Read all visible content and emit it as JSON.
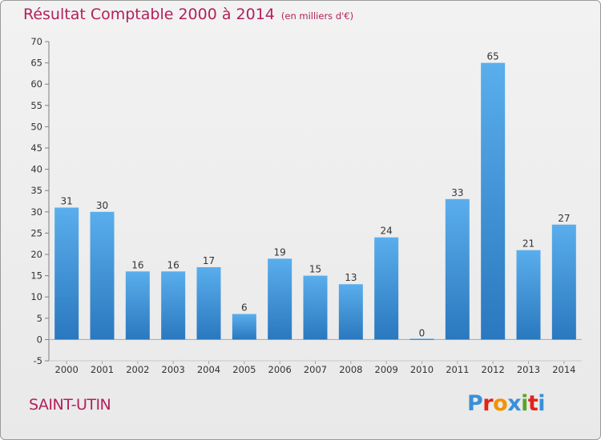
{
  "title": "Résultat Comptable 2000 à 2014",
  "subtitle": "(en milliers d'€)",
  "commune": "SAINT-UTIN",
  "logo": {
    "letters": [
      "P",
      "r",
      "o",
      "x",
      "i",
      "t",
      "i"
    ],
    "colors": [
      "#3a8fd8",
      "#e2231a",
      "#f39200",
      "#3a8fd8",
      "#59a52c",
      "#e2231a",
      "#3a8fd8"
    ]
  },
  "colors": {
    "bar": "#3a8fd8",
    "title": "#b3205b"
  },
  "chart_data": {
    "type": "bar",
    "categories": [
      "2000",
      "2001",
      "2002",
      "2003",
      "2004",
      "2005",
      "2006",
      "2007",
      "2008",
      "2009",
      "2010",
      "2011",
      "2012",
      "2013",
      "2014"
    ],
    "values": [
      31,
      30,
      16,
      16,
      17,
      6,
      19,
      15,
      13,
      24,
      0,
      33,
      65,
      21,
      27
    ],
    "ylim": [
      -5,
      70
    ],
    "yticks": [
      -5,
      0,
      5,
      10,
      15,
      20,
      25,
      30,
      35,
      40,
      45,
      50,
      55,
      60,
      65,
      70
    ],
    "grid": false
  }
}
